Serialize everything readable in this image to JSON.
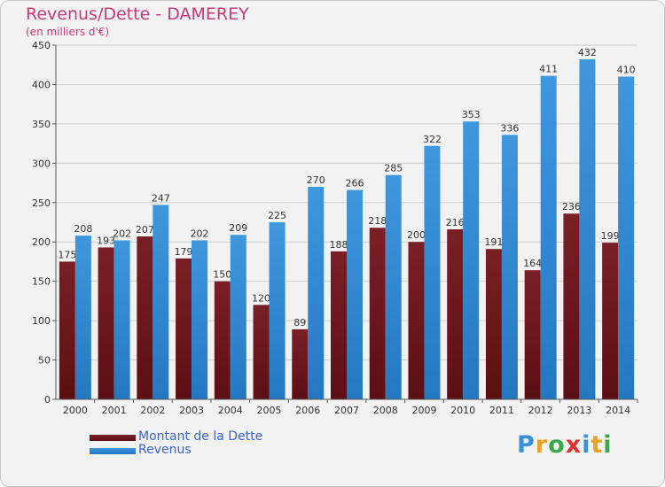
{
  "title": "Revenus/Dette - DAMEREY",
  "subtitle": "(en milliers d'€)",
  "logo": {
    "letters": [
      {
        "char": "P",
        "color": "#3a8fdc"
      },
      {
        "char": "r",
        "color": "#f0a020"
      },
      {
        "char": "o",
        "color": "#3aa84a"
      },
      {
        "char": "x",
        "color": "#e2322c"
      },
      {
        "char": "i",
        "color": "#3a8fdc"
      },
      {
        "char": "t",
        "color": "#f0a020"
      },
      {
        "char": "i",
        "color": "#3aa84a"
      }
    ]
  },
  "colors": {
    "debt": "#7a1f26",
    "debt_dark": "#5c0f14",
    "revenue": "#3f97de",
    "revenue_dark": "#2478c2",
    "grid": "#cfcfcf",
    "axis": "#555555"
  },
  "chart_data": {
    "type": "bar",
    "title": "Revenus/Dette - DAMEREY",
    "subtitle": "(en milliers d'€)",
    "categories": [
      "2000",
      "2001",
      "2002",
      "2003",
      "2004",
      "2005",
      "2006",
      "2007",
      "2008",
      "2009",
      "2010",
      "2011",
      "2012",
      "2013",
      "2014"
    ],
    "series": [
      {
        "name": "Montant de la Dette",
        "values": [
          175,
          193,
          207,
          179,
          150,
          120,
          89,
          188,
          218,
          200,
          216,
          191,
          164,
          236,
          199
        ]
      },
      {
        "name": "Revenus",
        "values": [
          208,
          202,
          247,
          202,
          209,
          225,
          270,
          266,
          285,
          322,
          353,
          336,
          411,
          432,
          410
        ]
      }
    ],
    "ylim": [
      0,
      450
    ],
    "yticks": [
      0,
      50,
      100,
      150,
      200,
      250,
      300,
      350,
      400,
      450
    ],
    "grid": true,
    "legend": "bottom-left"
  }
}
